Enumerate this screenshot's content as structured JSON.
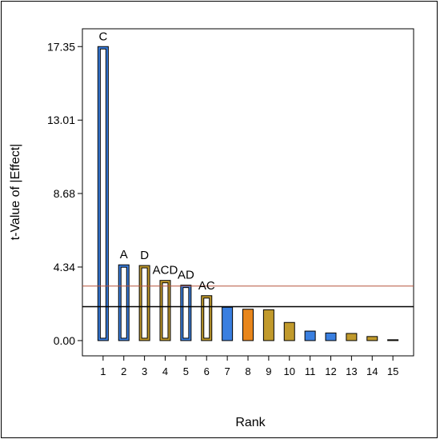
{
  "chart_data": {
    "type": "bar",
    "xlabel": "Rank",
    "ylabel": "t-Value of |Effect|",
    "ylim": [
      -0.9,
      18.4
    ],
    "xlim": [
      0,
      16
    ],
    "yticks": [
      "0.00",
      "4.34",
      "8.68",
      "13.01",
      "17.35"
    ],
    "ytick_values": [
      0.0,
      4.34,
      8.68,
      13.01,
      17.35
    ],
    "categories": [
      "1",
      "2",
      "3",
      "4",
      "5",
      "6",
      "7",
      "8",
      "9",
      "10",
      "11",
      "12",
      "13",
      "14",
      "15"
    ],
    "values": [
      17.35,
      4.47,
      4.43,
      3.55,
      3.27,
      2.65,
      1.97,
      1.85,
      1.82,
      1.07,
      0.56,
      0.45,
      0.42,
      0.24,
      0.05
    ],
    "labels": [
      "C",
      "A",
      "D",
      "ACD",
      "AD",
      "AC",
      "",
      "",
      "",
      "",
      "",
      "",
      "",
      "",
      ""
    ],
    "bar_styles": [
      "outline",
      "outline",
      "outline",
      "outline",
      "outline",
      "outline",
      "solid",
      "solid",
      "solid",
      "solid",
      "solid",
      "solid",
      "solid",
      "solid",
      "solid"
    ],
    "bar_colors": [
      "#3a7fe0",
      "#3a7fe0",
      "#c19a2c",
      "#c19a2c",
      "#3a7fe0",
      "#c19a2c",
      "#3a7fe0",
      "#e8861c",
      "#c19a2c",
      "#c19a2c",
      "#3a7fe0",
      "#3a7fe0",
      "#c19a2c",
      "#c19a2c",
      "#c19a2c"
    ],
    "reference_lines": [
      {
        "y": 3.22,
        "color": "#b5533a"
      },
      {
        "y": 2.0,
        "color": "#000000"
      }
    ]
  }
}
